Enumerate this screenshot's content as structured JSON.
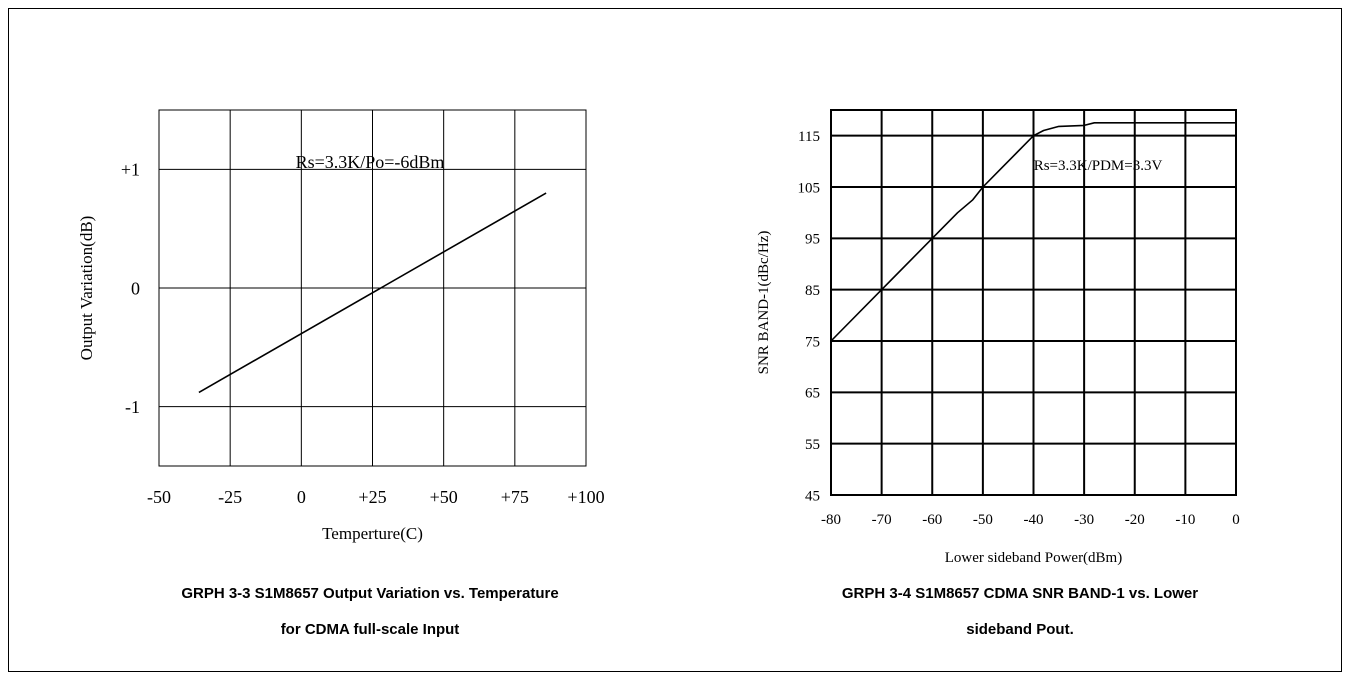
{
  "chart_data": [
    {
      "type": "line",
      "xlabel": "Temperture(C)",
      "ylabel": "Output Variation(dB)",
      "xlim": [
        -50,
        100
      ],
      "ylim": [
        -1.5,
        1.5
      ],
      "x_ticks": [
        -50,
        -25,
        0,
        25,
        50,
        75,
        100
      ],
      "x_tick_labels": [
        "-50",
        "-25",
        "0",
        "+25",
        "+50",
        "+75",
        "+100"
      ],
      "y_ticks": [
        1,
        0,
        -1
      ],
      "y_tick_labels": [
        "+1",
        "0",
        "-1"
      ],
      "grid": true,
      "annotation": "Rs=3.3K/Po=-6dBm",
      "series": [
        {
          "x": [
            -36,
            86
          ],
          "y": [
            -0.88,
            0.8
          ]
        }
      ],
      "caption_line1": "GRPH 3-3 S1M8657 Output Variation vs. Temperature",
      "caption_line2": "for CDMA full-scale Input"
    },
    {
      "type": "line",
      "xlabel": "Lower sideband Power(dBm)",
      "ylabel": "SNR BAND-1(dBc/Hz)",
      "xlim": [
        -80,
        0
      ],
      "ylim": [
        45,
        120
      ],
      "x_ticks": [
        -80,
        -70,
        -60,
        -50,
        -40,
        -30,
        -20,
        -10,
        0
      ],
      "x_tick_labels": [
        "-80",
        "-70",
        "-60",
        "-50",
        "-40",
        "-30",
        "-20",
        "-10",
        "0"
      ],
      "y_ticks": [
        115,
        105,
        95,
        85,
        75,
        65,
        55,
        45
      ],
      "y_tick_labels": [
        "115",
        "105",
        "95",
        "85",
        "75",
        "65",
        "55",
        "45"
      ],
      "grid": true,
      "annotation": "Rs=3.3K/PDM=3.3V",
      "series": [
        {
          "x": [
            -80,
            -70,
            -60,
            -55,
            -52,
            -50,
            -47,
            -44,
            -42,
            -40,
            -38,
            -35,
            -30,
            -28,
            -20,
            -10,
            0
          ],
          "y": [
            75,
            85,
            95,
            100,
            102.5,
            105,
            108,
            111,
            113,
            115,
            116,
            116.8,
            117,
            117.5,
            117.5,
            117.5,
            117.5
          ]
        }
      ],
      "caption_line1": "GRPH 3-4 S1M8657 CDMA SNR BAND-1 vs. Lower",
      "caption_line2": "sideband Pout."
    }
  ]
}
